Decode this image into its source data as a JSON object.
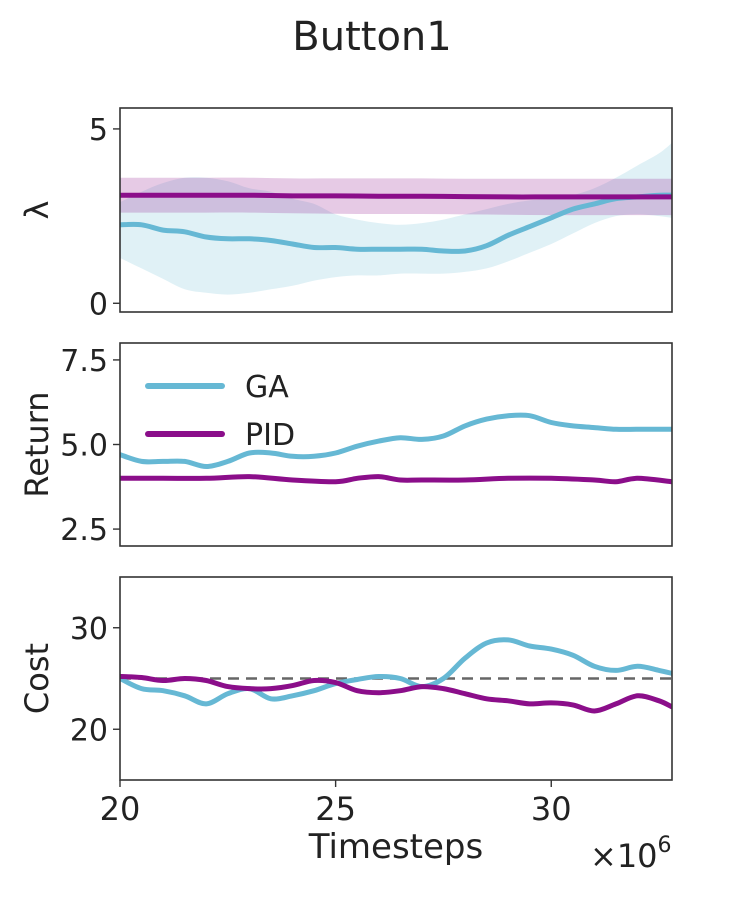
{
  "chart_data": {
    "title": "Button1",
    "type": "line",
    "colors": {
      "GA": "#66b8d4",
      "PID": "#8b0e8a",
      "threshold": "#666666"
    },
    "x": {
      "label": "Timesteps",
      "multiplier_label": "×10",
      "multiplier_exponent": "6",
      "range": [
        20,
        32.8
      ],
      "ticks": [
        20,
        25,
        30
      ],
      "tick_labels": [
        "20",
        "25",
        "30"
      ]
    },
    "legend": {
      "entries": [
        "GA",
        "PID"
      ],
      "placement": "upper-left of middle panel"
    },
    "panels": [
      {
        "id": "lambda",
        "ylabel": "λ",
        "ylim": [
          -0.25,
          5.6
        ],
        "yticks": [
          0,
          5
        ],
        "ytick_labels": [
          "0",
          "5"
        ],
        "series": [
          {
            "name": "GA",
            "x": [
              20,
              20.5,
              21,
              21.5,
              22,
              22.5,
              23,
              23.5,
              24,
              24.5,
              25,
              25.5,
              26,
              26.5,
              27,
              27.5,
              28,
              28.5,
              29,
              29.5,
              30,
              30.5,
              31,
              31.5,
              32,
              32.5,
              32.8
            ],
            "y": [
              2.25,
              2.25,
              2.1,
              2.05,
              1.9,
              1.85,
              1.85,
              1.8,
              1.7,
              1.6,
              1.6,
              1.55,
              1.55,
              1.55,
              1.55,
              1.5,
              1.5,
              1.65,
              1.95,
              2.2,
              2.45,
              2.7,
              2.85,
              3.0,
              3.05,
              3.1,
              3.1
            ],
            "upper": [
              2.9,
              3.2,
              3.45,
              3.6,
              3.6,
              3.5,
              3.3,
              3.2,
              3.0,
              2.85,
              2.55,
              2.4,
              2.3,
              2.25,
              2.3,
              2.4,
              2.55,
              2.7,
              2.85,
              2.95,
              3.0,
              3.1,
              3.3,
              3.6,
              3.95,
              4.3,
              4.6
            ],
            "lower": [
              1.3,
              1.0,
              0.7,
              0.4,
              0.3,
              0.25,
              0.3,
              0.4,
              0.5,
              0.65,
              0.75,
              0.8,
              0.8,
              0.85,
              0.85,
              0.85,
              0.9,
              1.0,
              1.2,
              1.45,
              1.7,
              2.0,
              2.3,
              2.5,
              2.55,
              2.5,
              2.45
            ]
          },
          {
            "name": "PID",
            "x": [
              20,
              21,
              22,
              23,
              24,
              25,
              26,
              27,
              28,
              29,
              30,
              31,
              32,
              32.8
            ],
            "y": [
              3.1,
              3.1,
              3.1,
              3.1,
              3.08,
              3.08,
              3.07,
              3.07,
              3.06,
              3.05,
              3.05,
              3.05,
              3.05,
              3.05
            ],
            "upper": [
              3.6,
              3.6,
              3.6,
              3.6,
              3.58,
              3.58,
              3.58,
              3.58,
              3.57,
              3.57,
              3.57,
              3.57,
              3.57,
              3.57
            ],
            "lower": [
              2.6,
              2.6,
              2.6,
              2.6,
              2.58,
              2.57,
              2.56,
              2.56,
              2.55,
              2.54,
              2.53,
              2.53,
              2.53,
              2.53
            ]
          }
        ]
      },
      {
        "id": "return",
        "ylabel": "Return",
        "ylim": [
          2.0,
          8.0
        ],
        "yticks": [
          2.5,
          5.0,
          7.5
        ],
        "ytick_labels": [
          "2.5",
          "5.0",
          "7.5"
        ],
        "series": [
          {
            "name": "GA",
            "x": [
              20,
              20.5,
              21,
              21.5,
              22,
              22.5,
              23,
              23.5,
              24,
              24.5,
              25,
              25.5,
              26,
              26.5,
              27,
              27.5,
              28,
              28.5,
              29,
              29.5,
              30,
              30.5,
              31,
              31.5,
              32,
              32.5,
              32.8
            ],
            "y": [
              4.7,
              4.5,
              4.5,
              4.5,
              4.35,
              4.5,
              4.75,
              4.75,
              4.65,
              4.65,
              4.75,
              4.95,
              5.1,
              5.2,
              5.15,
              5.25,
              5.55,
              5.75,
              5.85,
              5.85,
              5.65,
              5.55,
              5.5,
              5.45,
              5.45,
              5.45,
              5.45
            ]
          },
          {
            "name": "PID",
            "x": [
              20,
              21,
              22,
              23,
              24,
              25,
              25.5,
              26,
              26.5,
              27,
              28,
              29,
              30,
              31,
              31.5,
              32,
              32.8
            ],
            "y": [
              4.0,
              4.0,
              4.0,
              4.05,
              3.95,
              3.9,
              4.0,
              4.05,
              3.95,
              3.95,
              3.95,
              4.0,
              4.0,
              3.95,
              3.9,
              4.0,
              3.9
            ]
          }
        ]
      },
      {
        "id": "cost",
        "ylabel": "Cost",
        "ylim": [
          15,
          35
        ],
        "yticks": [
          20,
          30
        ],
        "ytick_labels": [
          "20",
          "30"
        ],
        "threshold": 25,
        "series": [
          {
            "name": "GA",
            "x": [
              20,
              20.5,
              21,
              21.5,
              22,
              22.5,
              23,
              23.5,
              24,
              24.5,
              25,
              25.5,
              26,
              26.5,
              27,
              27.5,
              28,
              28.5,
              29,
              29.5,
              30,
              30.5,
              31,
              31.5,
              32,
              32.5,
              32.8
            ],
            "y": [
              25.0,
              24.0,
              23.8,
              23.3,
              22.5,
              23.5,
              24.0,
              23.0,
              23.3,
              23.8,
              24.5,
              24.9,
              25.2,
              25.0,
              24.2,
              25.0,
              27.0,
              28.5,
              28.8,
              28.2,
              27.9,
              27.3,
              26.2,
              25.8,
              26.2,
              25.8,
              25.5
            ]
          },
          {
            "name": "PID",
            "x": [
              20,
              20.5,
              21,
              21.5,
              22,
              22.5,
              23,
              23.5,
              24,
              24.5,
              25,
              25.5,
              26,
              26.5,
              27,
              27.5,
              28,
              28.5,
              29,
              29.5,
              30,
              30.5,
              31,
              31.5,
              32,
              32.5,
              32.8
            ],
            "y": [
              25.2,
              25.1,
              24.8,
              25.0,
              24.8,
              24.2,
              24.0,
              24.0,
              24.3,
              24.8,
              24.6,
              23.8,
              23.6,
              23.8,
              24.2,
              24.0,
              23.5,
              23.0,
              22.8,
              22.5,
              22.6,
              22.4,
              21.8,
              22.5,
              23.3,
              22.8,
              22.2
            ]
          }
        ]
      }
    ]
  }
}
